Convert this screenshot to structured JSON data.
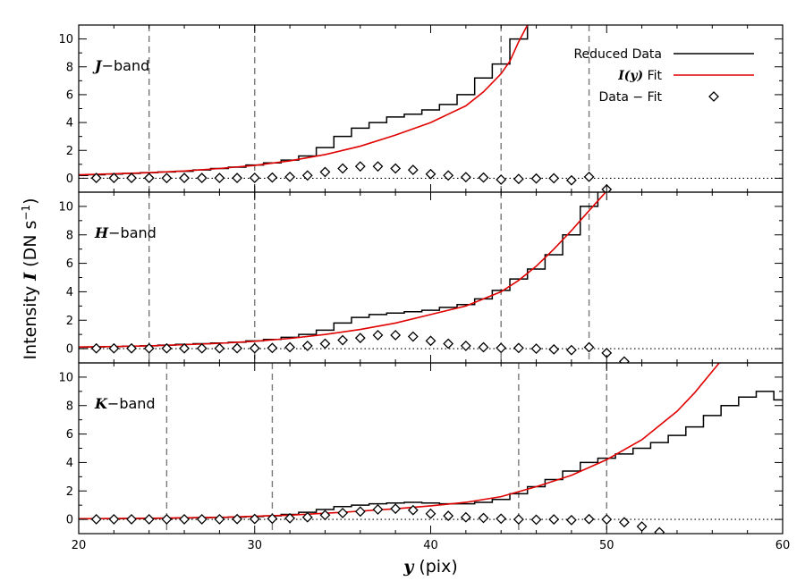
{
  "chart_data": {
    "type": "line",
    "xlabel": {
      "sym": "y",
      "rest": " (pix)"
    },
    "ylabel": {
      "prefix": "Intensity ",
      "sym": "I",
      "units": " (DN s",
      "exp": "−1",
      "close": ")"
    },
    "xlim": [
      20,
      60
    ],
    "xticks": [
      "20",
      "30",
      "40",
      "50",
      "60"
    ],
    "ylim": [
      -1,
      11
    ],
    "yticks": [
      "0",
      "2",
      "4",
      "6",
      "8",
      "10"
    ],
    "legend": {
      "position": "top-right",
      "entries": [
        {
          "label": "Reduced Data",
          "color": "#000000",
          "kind": "line"
        },
        {
          "sym": "I(y)",
          "rest": " Fit",
          "color": "#e00000",
          "kind": "line"
        },
        {
          "label": "Data − Fit",
          "color": "#000000",
          "kind": "diamond"
        }
      ]
    },
    "panels": [
      {
        "band_sym": "J",
        "band_rest": "−band",
        "vlines": [
          24,
          30,
          44,
          49
        ],
        "data": {
          "x": [
            20,
            21,
            22,
            23,
            24,
            25,
            26,
            27,
            28,
            29,
            30,
            31,
            32,
            33,
            34,
            35,
            36,
            37,
            38,
            39,
            40,
            41,
            42,
            43,
            44,
            45,
            46
          ],
          "y": [
            0.2,
            0.25,
            0.3,
            0.35,
            0.4,
            0.45,
            0.5,
            0.6,
            0.7,
            0.8,
            0.95,
            1.1,
            1.3,
            1.6,
            2.2,
            3.0,
            3.6,
            4.0,
            4.4,
            4.6,
            4.9,
            5.3,
            6.0,
            7.2,
            8.2,
            10.0,
            11.5
          ]
        },
        "fit": {
          "x": [
            20,
            22,
            24,
            26,
            28,
            30,
            32,
            34,
            36,
            38,
            40,
            42,
            43,
            44,
            44.5,
            45,
            45.5
          ],
          "y": [
            0.25,
            0.32,
            0.4,
            0.52,
            0.7,
            0.92,
            1.25,
            1.7,
            2.3,
            3.1,
            4.0,
            5.2,
            6.2,
            7.5,
            8.4,
            9.8,
            11.0
          ]
        },
        "resid": {
          "x": [
            21,
            22,
            23,
            24,
            25,
            26,
            27,
            28,
            29,
            30,
            31,
            32,
            33,
            34,
            35,
            36,
            37,
            38,
            39,
            40,
            41,
            42,
            43,
            44,
            45,
            46,
            47,
            48,
            49,
            50
          ],
          "y": [
            0.02,
            0.02,
            0.02,
            0.02,
            0.01,
            0.02,
            0.02,
            0.02,
            0.02,
            0.03,
            0.05,
            0.1,
            0.2,
            0.45,
            0.7,
            0.85,
            0.85,
            0.7,
            0.6,
            0.3,
            0.2,
            0.08,
            0.05,
            -0.1,
            -0.05,
            -0.02,
            0.0,
            -0.15,
            0.1,
            -0.8
          ]
        }
      },
      {
        "band_sym": "H",
        "band_rest": "−band",
        "vlines": [
          24,
          30,
          44,
          49
        ],
        "data": {
          "x": [
            20,
            21,
            22,
            23,
            24,
            25,
            26,
            27,
            28,
            29,
            30,
            31,
            32,
            33,
            34,
            35,
            36,
            37,
            38,
            39,
            40,
            41,
            42,
            43,
            44,
            45,
            46,
            47,
            48,
            49,
            50
          ],
          "y": [
            0.1,
            0.12,
            0.15,
            0.18,
            0.2,
            0.25,
            0.3,
            0.35,
            0.4,
            0.45,
            0.55,
            0.65,
            0.8,
            1.0,
            1.3,
            1.8,
            2.2,
            2.4,
            2.5,
            2.6,
            2.7,
            2.9,
            3.1,
            3.5,
            4.1,
            4.9,
            5.6,
            6.6,
            8.0,
            10.0,
            11.5
          ]
        },
        "fit": {
          "x": [
            20,
            22,
            24,
            26,
            28,
            30,
            32,
            34,
            36,
            38,
            40,
            42,
            44,
            45,
            46,
            47,
            48,
            49,
            49.8,
            50.3
          ],
          "y": [
            0.12,
            0.15,
            0.2,
            0.28,
            0.38,
            0.52,
            0.72,
            1.0,
            1.35,
            1.8,
            2.4,
            3.0,
            4.0,
            4.8,
            5.8,
            7.0,
            8.3,
            9.7,
            10.8,
            11.5
          ]
        },
        "resid": {
          "x": [
            21,
            22,
            23,
            24,
            25,
            26,
            27,
            28,
            29,
            30,
            31,
            32,
            33,
            34,
            35,
            36,
            37,
            38,
            39,
            40,
            41,
            42,
            43,
            44,
            45,
            46,
            47,
            48,
            49,
            50,
            51
          ],
          "y": [
            0.02,
            0.02,
            0.02,
            0.02,
            0.02,
            0.02,
            0.02,
            0.02,
            0.03,
            0.03,
            0.05,
            0.1,
            0.2,
            0.35,
            0.6,
            0.75,
            0.95,
            0.95,
            0.85,
            0.55,
            0.35,
            0.2,
            0.1,
            0.05,
            0.05,
            0.0,
            -0.05,
            -0.1,
            0.1,
            -0.3,
            -0.9
          ]
        }
      },
      {
        "band_sym": "K",
        "band_rest": "−band",
        "vlines": [
          25,
          31,
          45,
          50
        ],
        "data": {
          "x": [
            20,
            21,
            22,
            23,
            24,
            25,
            26,
            27,
            28,
            29,
            30,
            31,
            32,
            33,
            34,
            35,
            36,
            37,
            38,
            39,
            40,
            41,
            42,
            43,
            44,
            45,
            46,
            47,
            48,
            49,
            50,
            51,
            52,
            53,
            54,
            55,
            56,
            57,
            58,
            59,
            60
          ],
          "y": [
            0.05,
            0.05,
            0.05,
            0.06,
            0.07,
            0.08,
            0.1,
            0.12,
            0.14,
            0.16,
            0.2,
            0.25,
            0.35,
            0.5,
            0.7,
            0.9,
            1.0,
            1.1,
            1.15,
            1.2,
            1.15,
            1.1,
            1.1,
            1.2,
            1.4,
            1.8,
            2.3,
            2.8,
            3.4,
            4.0,
            4.3,
            4.6,
            5.0,
            5.4,
            5.9,
            6.5,
            7.3,
            8.0,
            8.6,
            9.0,
            8.4
          ]
        },
        "fit": {
          "x": [
            20,
            24,
            28,
            32,
            35,
            38,
            40,
            42,
            44,
            46,
            48,
            50,
            52,
            54,
            55,
            56,
            56.4
          ],
          "y": [
            0.05,
            0.08,
            0.14,
            0.3,
            0.5,
            0.75,
            0.95,
            1.2,
            1.6,
            2.3,
            3.1,
            4.2,
            5.6,
            7.6,
            8.9,
            10.4,
            11.0
          ]
        },
        "resid": {
          "x": [
            21,
            22,
            23,
            24,
            25,
            26,
            27,
            28,
            29,
            30,
            31,
            32,
            33,
            34,
            35,
            36,
            37,
            38,
            39,
            40,
            41,
            42,
            43,
            44,
            45,
            46,
            47,
            48,
            49,
            50,
            51,
            52,
            53
          ],
          "y": [
            0.01,
            0.01,
            0.01,
            0.01,
            0.01,
            0.01,
            0.01,
            0.01,
            0.02,
            0.03,
            0.05,
            0.08,
            0.15,
            0.3,
            0.45,
            0.55,
            0.7,
            0.75,
            0.65,
            0.4,
            0.25,
            0.15,
            0.1,
            0.05,
            0.0,
            -0.02,
            0.0,
            -0.05,
            0.02,
            0.0,
            -0.2,
            -0.5,
            -0.9
          ]
        }
      }
    ]
  }
}
